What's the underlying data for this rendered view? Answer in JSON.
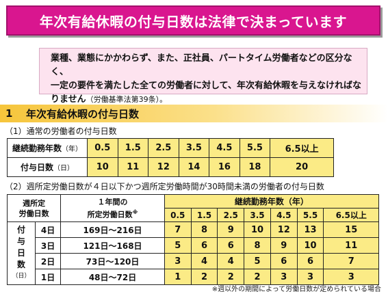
{
  "title": "年次有給休暇の付与日数は法律で決まっています",
  "notice": {
    "line1": "業種、業態にかかわらず、また、正社員、パートタイム労働者などの区分なく、",
    "line2": "一定の要件を満たした全ての労働者に対して、年次有給休暇を与えなければな",
    "line3": "りません",
    "law": "（労働基準法第39条）。"
  },
  "section": {
    "number": "1",
    "title": "年次有給休暇の付与日数"
  },
  "table1": {
    "caption": "（1）通常の労働者の付与日数",
    "row_years": {
      "label": "継続勤務年数",
      "unit": "（年）",
      "values": [
        "0.5",
        "1.5",
        "2.5",
        "3.5",
        "4.5",
        "5.5",
        "6.5以上"
      ]
    },
    "row_days": {
      "label": "付与日数",
      "unit": "（日）",
      "values": [
        "10",
        "11",
        "12",
        "14",
        "16",
        "18",
        "20"
      ]
    }
  },
  "table2": {
    "caption": "（2）週所定労働日数が４日以下かつ週所定労働時間が30時間未満の労働者の付与日数",
    "col_weekly_l1": "週所定",
    "col_weekly_l2": "労働日数",
    "col_annual_l1": "１年間の",
    "col_annual_l2": "所定労働日数",
    "col_annual_mark": "※",
    "years_header": "継続勤務年数（年）",
    "years": [
      "0.5",
      "1.5",
      "2.5",
      "3.5",
      "4.5",
      "5.5",
      "6.5以上"
    ],
    "side_label": [
      "付",
      "与",
      "日",
      "数"
    ],
    "side_unit": "（日）",
    "rows": [
      {
        "weekly": "4日",
        "annual": "169日～216日",
        "days": [
          "7",
          "8",
          "9",
          "10",
          "12",
          "13",
          "15"
        ]
      },
      {
        "weekly": "3日",
        "annual": "121日～168日",
        "days": [
          "5",
          "6",
          "6",
          "8",
          "9",
          "10",
          "11"
        ]
      },
      {
        "weekly": "2日",
        "annual": "73日～120日",
        "days": [
          "3",
          "4",
          "4",
          "5",
          "6",
          "6",
          "7"
        ]
      },
      {
        "weekly": "1日",
        "annual": "48日～72日",
        "days": [
          "1",
          "2",
          "2",
          "2",
          "3",
          "3",
          "3"
        ]
      }
    ]
  },
  "footnote": "※週以外の期間によって労働日数が定められている場合"
}
